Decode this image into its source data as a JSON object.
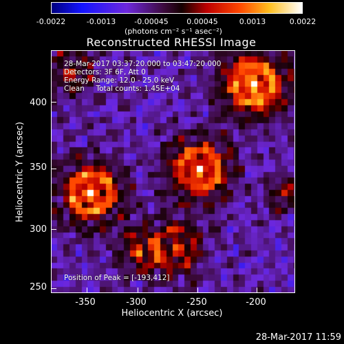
{
  "colorbar": {
    "labels": [
      "-0.0022",
      "-0.0013",
      "-0.00045",
      "0.00045",
      "0.0013",
      "0.0022"
    ],
    "units": "(photons cm⁻² s⁻¹ asec⁻²)"
  },
  "title": "Reconstructed RHESSI Image",
  "overlay": {
    "time_range": "28-Mar-2017 03:37:20.000 to 03:47:20.000",
    "detectors": "Detectors: 3F 6F, Att 0",
    "energy": "Energy Range: 12.0 - 25.0 keV",
    "clean": "Clean     Total counts: 1.45E+04",
    "peak": "Position of Peak = [-193,412]"
  },
  "axes": {
    "x_title": "Heliocentric X (arcsec)",
    "y_title": "Heliocentric Y (arcsec)",
    "x_ticks": [
      "-350",
      "-300",
      "-250",
      "-200"
    ],
    "y_ticks": [
      "400",
      "350",
      "300",
      "250"
    ]
  },
  "timestamp": "28-Mar-2017 11:59"
}
